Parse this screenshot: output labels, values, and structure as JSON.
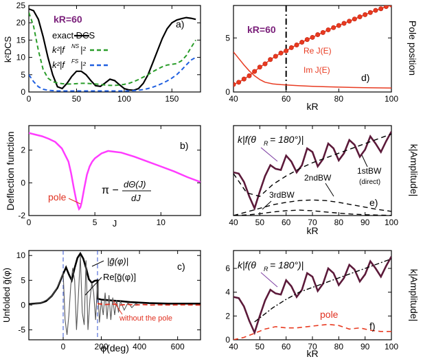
{
  "chart_data": [
    {
      "panel": "a)",
      "type": "line",
      "ylabel": "k²DCS",
      "xlim": [
        0,
        180
      ],
      "ylim": [
        0,
        25
      ],
      "xticks": [
        0,
        50,
        100,
        150
      ],
      "yticks": [
        0,
        5,
        10,
        15,
        20,
        25
      ],
      "annotation": "kR=60",
      "legend": [
        {
          "label": "exact DCS",
          "style": "solid",
          "color": "#000000"
        },
        {
          "label": "k²|f^NS|²",
          "style": "dashed",
          "color": "#2a9d2a"
        },
        {
          "label": "k²|f^FS|²",
          "style": "dashed",
          "color": "#1f5fe0"
        }
      ],
      "series": [
        {
          "name": "exact DCS",
          "x": [
            0,
            5,
            10,
            15,
            20,
            25,
            30,
            35,
            40,
            45,
            50,
            55,
            60,
            65,
            70,
            75,
            80,
            85,
            90,
            95,
            100,
            105,
            110,
            115,
            120,
            125,
            130,
            135,
            140,
            145,
            150,
            155,
            160,
            165,
            170,
            175
          ],
          "y": [
            24,
            23.5,
            21,
            16,
            10,
            5,
            1.5,
            1,
            2.5,
            4.5,
            6,
            6,
            5,
            3.3,
            1.8,
            1.6,
            2.6,
            3.7,
            3.3,
            2.1,
            1,
            0.6,
            0.5,
            1,
            2.5,
            5,
            8.5,
            12,
            15.5,
            18.3,
            20,
            20.8,
            21.2,
            21.5,
            21.3,
            21
          ]
        },
        {
          "name": "k²|f^NS|²",
          "x": [
            0,
            5,
            10,
            15,
            20,
            25,
            30,
            35,
            40,
            45,
            50,
            55,
            60,
            65,
            70,
            75,
            80,
            85,
            90,
            95,
            100,
            105,
            110,
            115,
            120,
            125,
            130,
            135,
            140,
            145,
            150,
            155,
            160,
            165,
            170,
            175
          ],
          "y": [
            23,
            19,
            12,
            6.5,
            4,
            3,
            2.6,
            2.4,
            2.3,
            2.3,
            2.4,
            2.5,
            2.5,
            2.4,
            2.3,
            2.2,
            2,
            1.9,
            1.9,
            2,
            2.2,
            2.5,
            3,
            3.6,
            4.3,
            5,
            5.9,
            6.6,
            7.3,
            7.8,
            8,
            8.2,
            9,
            10.5,
            12.8,
            15
          ]
        },
        {
          "name": "k²|f^FS|²",
          "x": [
            0,
            5,
            10,
            15,
            20,
            25,
            30,
            35,
            40,
            45,
            50,
            55,
            60,
            65,
            70,
            75,
            80,
            85,
            90,
            95,
            100,
            105,
            110,
            115,
            120,
            125,
            130,
            135,
            140,
            145,
            150,
            155,
            160,
            165,
            170,
            175
          ],
          "y": [
            5,
            3,
            1.5,
            0.8,
            0.5,
            0.4,
            0.3,
            0.3,
            0.3,
            0.3,
            0.3,
            0.3,
            0.3,
            0.3,
            0.3,
            0.3,
            0.3,
            0.3,
            0.3,
            0.3,
            0.3,
            0.3,
            0.4,
            0.5,
            0.7,
            1,
            1.4,
            1.9,
            2.5,
            3.2,
            4,
            5,
            6.3,
            7.8,
            9.2,
            10
          ]
        }
      ]
    },
    {
      "panel": "b)",
      "type": "line",
      "ylabel": "Deflection function",
      "xlabel": "J",
      "xlim": [
        0,
        13
      ],
      "ylim": [
        -2,
        3.5
      ],
      "xticks": [
        0,
        5,
        10
      ],
      "yticks": [
        -2,
        0,
        2
      ],
      "annotations": [
        "pole",
        "π − dΘ(J)/dJ"
      ],
      "series": [
        {
          "name": "deflection",
          "color": "#ff3cff",
          "x": [
            0,
            0.5,
            1,
            1.5,
            2,
            2.5,
            3,
            3.2,
            3.4,
            3.6,
            3.8,
            3.9,
            4,
            4.2,
            4.4,
            4.6,
            4.8,
            5,
            5.5,
            6,
            6.5,
            7,
            8,
            9,
            10,
            11,
            12,
            13
          ],
          "y": [
            3.05,
            2.95,
            2.85,
            2.7,
            2.5,
            2.1,
            1.3,
            0.6,
            -0.3,
            -1.1,
            -1.6,
            -1.5,
            -1.2,
            -0.3,
            0.5,
            1,
            1.3,
            1.5,
            1.8,
            1.95,
            1.9,
            1.85,
            1.6,
            1.3,
            1,
            0.7,
            0.35,
            0.05
          ]
        }
      ]
    },
    {
      "panel": "c)",
      "type": "line",
      "ylabel": "Unfolded g̃(φ)",
      "xlabel": "φ(deg)",
      "xlim": [
        -180,
        720
      ],
      "ylim": [
        -7,
        11
      ],
      "xticks": [
        0,
        200,
        400,
        600
      ],
      "yticks": [
        -5,
        0,
        5,
        10
      ],
      "annotations": [
        "|g̃(φ)|",
        "Re[g̃(φ)]",
        "without the pole"
      ],
      "vlines": [
        0,
        180
      ],
      "series": [
        {
          "name": "|g̃(φ)|",
          "color": "#000000",
          "x": [
            -180,
            -150,
            -120,
            -90,
            -60,
            -30,
            0,
            15,
            30,
            45,
            60,
            75,
            90,
            105,
            120,
            135,
            150,
            165,
            180,
            181,
            200,
            230,
            260,
            300,
            350,
            400,
            450,
            500,
            550,
            600,
            650,
            720
          ],
          "y": [
            0.2,
            0.3,
            0.4,
            0.8,
            1.8,
            3.5,
            6.3,
            7.6,
            6.2,
            5,
            7.5,
            9.5,
            10.4,
            9.4,
            7.5,
            5.2,
            4.5,
            4.9,
            5,
            1.3,
            1.1,
            1,
            0.9,
            0.8,
            0.6,
            0.5,
            0.4,
            0.35,
            0.3,
            0.3,
            0.3,
            0.3
          ]
        },
        {
          "name": "Re[g̃(φ)]",
          "color": "#555555",
          "x": [
            -180,
            -150,
            -120,
            -100,
            -80,
            -60,
            -40,
            -20,
            0,
            10,
            20,
            30,
            40,
            50,
            60,
            70,
            80,
            90,
            100,
            110,
            120,
            130,
            140,
            150,
            160,
            170,
            180,
            190,
            200,
            210,
            220,
            230,
            240,
            250,
            260,
            270,
            280,
            290,
            300,
            320,
            340,
            360,
            380,
            400
          ],
          "y": [
            0,
            0.2,
            0.4,
            0.8,
            1.2,
            1.8,
            3,
            4.5,
            6.5,
            -3,
            -6,
            -2,
            4,
            7.5,
            5,
            -5,
            2,
            10,
            -1.5,
            -4,
            9,
            -5,
            1,
            4.5,
            2.5,
            -3,
            4.5,
            -3.5,
            1,
            -2,
            2.5,
            -2.8,
            2,
            -3,
            1.5,
            -2,
            1,
            -1.5,
            0.8,
            -1,
            0.5,
            -0.5,
            0.3,
            0
          ]
        },
        {
          "name": "without the pole",
          "color": "#e03020",
          "style": "dashed",
          "x": [
            180,
            220,
            260,
            300,
            340,
            380,
            420,
            460,
            500,
            560,
            620,
            720
          ],
          "y": [
            0.3,
            0.1,
            0.2,
            0,
            0.15,
            0,
            0.1,
            0,
            0.05,
            0,
            0.05,
            0
          ]
        }
      ]
    },
    {
      "panel": "d)",
      "type": "line",
      "ylabel": "Pole position",
      "xlabel": "kR",
      "xlim": [
        40,
        100
      ],
      "ylim": [
        0,
        8
      ],
      "xticks": [
        40,
        60,
        80,
        100
      ],
      "yticks": [
        0,
        5
      ],
      "annotations": [
        "kR=60",
        "Re J(E)",
        "Im J(E)"
      ],
      "vlines": [
        60
      ],
      "series": [
        {
          "name": "Re J(E)",
          "color": "#e83a20",
          "marker": "circle",
          "x": [
            40,
            42,
            44,
            46,
            48,
            50,
            52,
            54,
            56,
            58,
            60,
            62,
            64,
            66,
            68,
            70,
            72,
            74,
            76,
            78,
            80,
            82,
            84,
            86,
            88,
            90,
            92,
            94,
            96,
            98,
            100
          ],
          "y": [
            0.7,
            0.9,
            1.2,
            1.5,
            1.9,
            2.3,
            2.6,
            3,
            3.3,
            3.6,
            3.8,
            4.1,
            4.35,
            4.6,
            4.85,
            5.05,
            5.3,
            5.5,
            5.75,
            5.95,
            6.15,
            6.35,
            6.55,
            6.75,
            6.95,
            7.15,
            7.35,
            7.55,
            7.7,
            7.9,
            8.05
          ]
        },
        {
          "name": "Im J(E)",
          "color": "#e83a20",
          "x": [
            40,
            42,
            44,
            46,
            48,
            50,
            52,
            55,
            58,
            60,
            65,
            70,
            75,
            80,
            85,
            90,
            95,
            100
          ],
          "y": [
            3.7,
            3.1,
            2.5,
            1.95,
            1.5,
            1.15,
            0.9,
            0.75,
            0.68,
            0.65,
            0.58,
            0.52,
            0.48,
            0.45,
            0.42,
            0.4,
            0.38,
            0.37
          ]
        }
      ]
    },
    {
      "panel": "e)",
      "type": "line",
      "ylabel": "k|Amplitude|",
      "xlabel": "kR",
      "xlim": [
        40,
        100
      ],
      "ylim": [
        0,
        7.5
      ],
      "xticks": [
        40,
        50,
        60,
        70,
        80,
        90,
        100
      ],
      "annotations": [
        "k|f(θR = 180°)|",
        "1stBW",
        "(direct)",
        "2ndBW",
        "3rdBW"
      ],
      "series": [
        {
          "name": "k|f(θR=180°)|",
          "color": "#5c1a3a",
          "x": [
            40,
            42,
            44,
            46,
            48,
            50,
            52,
            54,
            56,
            58,
            60,
            62,
            64,
            66,
            68,
            70,
            72,
            74,
            76,
            78,
            80,
            82,
            84,
            86,
            88,
            90,
            92,
            94,
            96,
            98,
            100
          ],
          "y": [
            3.6,
            3.5,
            2.8,
            1.6,
            0.6,
            2,
            3.3,
            4.2,
            3.9,
            3.8,
            5,
            4.5,
            3.6,
            4.2,
            5.6,
            5.3,
            4.1,
            4.7,
            6,
            5.6,
            4.6,
            5.2,
            6.3,
            5.9,
            4.9,
            5.5,
            6.6,
            6,
            5.3,
            6.2,
            7
          ]
        },
        {
          "name": "1stBW",
          "color": "#000000",
          "style": "dashed",
          "x": [
            40,
            45,
            50,
            55,
            60,
            65,
            70,
            75,
            80,
            85,
            90,
            95,
            100
          ],
          "y": [
            3.5,
            1.9,
            1.6,
            2.6,
            3.3,
            3.9,
            4.4,
            4.8,
            5.2,
            5.6,
            6,
            6.4,
            6.8
          ]
        },
        {
          "name": "2ndBW",
          "color": "#000000",
          "style": "dashed",
          "x": [
            40,
            45,
            50,
            55,
            60,
            65,
            70,
            75,
            80,
            85,
            90,
            95,
            100
          ],
          "y": [
            0,
            0.3,
            0.6,
            0.9,
            1.1,
            1.25,
            1.3,
            1.25,
            1.1,
            0.9,
            0.7,
            0.5,
            0.35
          ]
        },
        {
          "name": "3rdBW",
          "color": "#000000",
          "style": "dashed",
          "x": [
            40,
            45,
            50,
            55,
            60,
            65,
            70,
            75,
            80,
            85,
            90,
            95,
            100
          ],
          "y": [
            0,
            0.05,
            0.15,
            0.3,
            0.4,
            0.45,
            0.4,
            0.3,
            0.2,
            0.12,
            0.07,
            0.04,
            0.02
          ]
        }
      ]
    },
    {
      "panel": "f)",
      "type": "line",
      "ylabel": "k|Amplitude|",
      "xlabel": "kR",
      "xlim": [
        40,
        100
      ],
      "ylim": [
        0,
        7.5
      ],
      "xticks": [
        40,
        50,
        60,
        70,
        80,
        90,
        100
      ],
      "yticks": [
        0,
        2,
        4,
        6
      ],
      "annotations": [
        "k|f(θR = 180°)|",
        "pole"
      ],
      "series": [
        {
          "name": "k|f(θR=180°)|",
          "color": "#5c1a3a",
          "x": [
            40,
            42,
            44,
            46,
            48,
            50,
            52,
            54,
            56,
            58,
            60,
            62,
            64,
            66,
            68,
            70,
            72,
            74,
            76,
            78,
            80,
            82,
            84,
            86,
            88,
            90,
            92,
            94,
            96,
            98,
            100
          ],
          "y": [
            3.6,
            3.5,
            2.8,
            1.6,
            0.6,
            2,
            3.3,
            4.2,
            3.9,
            3.8,
            5,
            4.5,
            3.6,
            4.2,
            5.6,
            5.3,
            4.1,
            4.7,
            6,
            5.6,
            4.6,
            5.2,
            6.3,
            5.9,
            4.9,
            5.5,
            6.6,
            6,
            5.3,
            6.2,
            7
          ]
        },
        {
          "name": "background",
          "color": "#000000",
          "style": "dashdot",
          "x": [
            48,
            55,
            60,
            65,
            70,
            75,
            80,
            85,
            90,
            95,
            100
          ],
          "y": [
            1.5,
            2.7,
            3.4,
            4,
            4.4,
            4.8,
            5.2,
            5.6,
            6,
            6.4,
            6.8
          ]
        },
        {
          "name": "pole",
          "color": "#e83a20",
          "style": "dashed",
          "x": [
            40,
            44,
            48,
            52,
            56,
            60,
            64,
            68,
            72,
            76,
            80,
            84,
            88,
            92,
            96,
            100
          ],
          "y": [
            0,
            0.2,
            0.55,
            0.9,
            1.1,
            1,
            1,
            1.1,
            1.2,
            1.3,
            1.2,
            0.9,
            1,
            0.8,
            0.7,
            0.7
          ]
        }
      ]
    }
  ],
  "labels": {
    "a_kr": "kR=60",
    "a_exact": "exact DCS",
    "a_ylabel": "k²DCS",
    "a_panel": "a)",
    "b_panel": "b)",
    "b_pole": "pole",
    "b_ylabel": "Deflection function",
    "b_xlabel": "J",
    "c_panel": "c)",
    "c_abs": "|g̃(φ)|",
    "c_re": "Re[g̃(φ)]",
    "c_nopole": "without the pole",
    "c_ylabel": "Unfolded g̃(φ)",
    "c_xlabel": "φ(deg)",
    "d_panel": "d)",
    "d_kr": "kR=60",
    "d_re": "Re J(E)",
    "d_im": "Im J(E)",
    "d_ylabel": "Pole position",
    "d_xlabel": "kR",
    "e_panel": "e)",
    "e_amp": "k|f(θ",
    "e_1st": "1stBW",
    "e_direct": "(direct)",
    "e_2nd": "2ndBW",
    "e_3rd": "3rdBW",
    "e_ylabel": "k|Amplitude|",
    "e_xlabel": "kR",
    "f_panel": "f)",
    "f_pole": "pole",
    "f_ylabel": "k|Amplitude|",
    "f_xlabel": "kR"
  }
}
